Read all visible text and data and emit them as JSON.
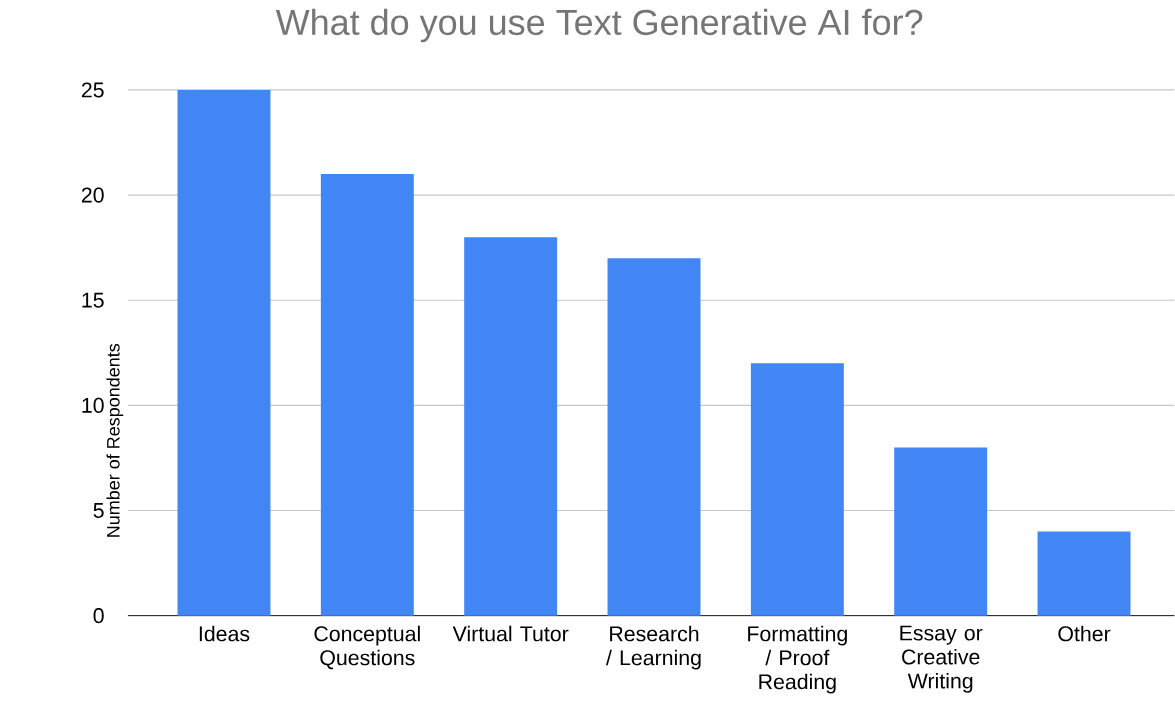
{
  "chart_data": {
    "type": "bar",
    "title": "What do you use Text Generative AI for?",
    "ylabel": "Number of Respondents",
    "categories": [
      "Ideas",
      "Conceptual Questions",
      "Virtual Tutor",
      "Research / Learning",
      "Formatting / Proof Reading",
      "Essay or Creative Writing",
      "Other"
    ],
    "values": [
      25,
      21,
      18,
      17,
      12,
      8,
      4
    ],
    "color": "#4285f4",
    "ylim": [
      0,
      25
    ],
    "yticks": [
      0,
      5,
      10,
      15,
      20,
      25
    ],
    "grid": "y"
  }
}
